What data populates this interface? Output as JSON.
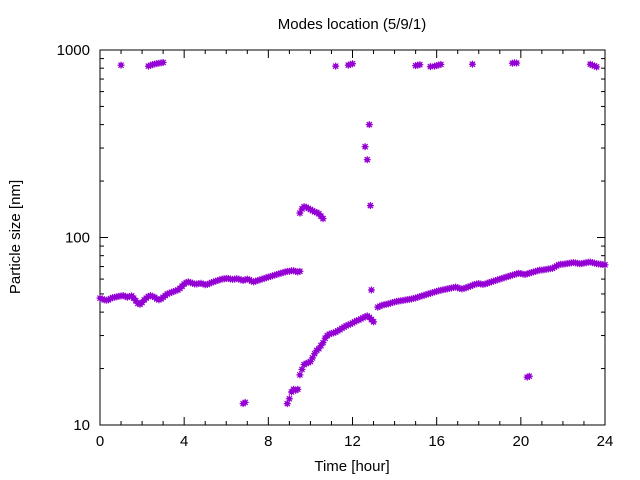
{
  "chart_data": {
    "type": "scatter",
    "title": "Modes location (5/9/1)",
    "xlabel": "Time [hour]",
    "ylabel": "Particle size [nm]",
    "xlim": [
      0,
      24
    ],
    "ylim": [
      10,
      1000
    ],
    "y_scale": "log",
    "x_ticks": [
      0,
      4,
      8,
      12,
      16,
      20,
      24
    ],
    "x_tick_labels": [
      "0",
      "4",
      "8",
      "12",
      "16",
      "20",
      "24"
    ],
    "y_ticks": [
      10,
      100,
      1000
    ],
    "y_tick_labels": [
      "10",
      "100",
      "1000"
    ],
    "grid": false,
    "legend": "none",
    "marker_color": "#9400d3",
    "series": [
      {
        "points": [
          [
            0.0,
            47.5
          ],
          [
            0.1,
            47.0
          ],
          [
            0.2,
            46.5
          ],
          [
            0.3,
            46.3
          ],
          [
            0.4,
            46.5
          ],
          [
            0.5,
            47.2
          ],
          [
            0.6,
            47.8
          ],
          [
            0.7,
            48.0
          ],
          [
            0.8,
            48.3
          ],
          [
            0.9,
            48.6
          ],
          [
            1.0,
            48.8
          ],
          [
            1.1,
            49.0
          ],
          [
            1.2,
            48.5
          ],
          [
            1.3,
            48.0
          ],
          [
            1.4,
            48.5
          ],
          [
            1.5,
            48.8
          ],
          [
            1.6,
            47.5
          ],
          [
            1.7,
            46.0
          ],
          [
            1.8,
            44.5
          ],
          [
            1.9,
            44.0
          ],
          [
            2.0,
            45.0
          ],
          [
            2.1,
            46.5
          ],
          [
            2.2,
            47.5
          ],
          [
            2.3,
            48.5
          ],
          [
            2.4,
            49.0
          ],
          [
            2.5,
            48.5
          ],
          [
            2.6,
            48.0
          ],
          [
            2.7,
            47.0
          ],
          [
            2.8,
            46.5
          ],
          [
            2.9,
            47.0
          ],
          [
            3.0,
            48.0
          ],
          [
            3.1,
            49.0
          ],
          [
            3.2,
            50.0
          ],
          [
            3.3,
            50.5
          ],
          [
            3.4,
            51.0
          ],
          [
            3.5,
            51.5
          ],
          [
            3.6,
            52.0
          ],
          [
            3.7,
            52.5
          ],
          [
            3.8,
            53.5
          ],
          [
            3.9,
            55.0
          ],
          [
            4.0,
            56.5
          ],
          [
            4.1,
            57.5
          ],
          [
            4.2,
            58.0
          ],
          [
            4.3,
            57.5
          ],
          [
            4.4,
            57.0
          ],
          [
            4.5,
            56.5
          ],
          [
            4.6,
            56.5
          ],
          [
            4.7,
            56.8
          ],
          [
            4.8,
            57.0
          ],
          [
            4.9,
            56.5
          ],
          [
            5.0,
            56.0
          ],
          [
            5.1,
            56.2
          ],
          [
            5.2,
            56.8
          ],
          [
            5.3,
            57.5
          ],
          [
            5.4,
            58.0
          ],
          [
            5.5,
            58.5
          ],
          [
            5.6,
            59.0
          ],
          [
            5.7,
            59.5
          ],
          [
            5.8,
            60.0
          ],
          [
            5.9,
            60.2
          ],
          [
            6.0,
            60.5
          ],
          [
            6.1,
            60.5
          ],
          [
            6.2,
            60.0
          ],
          [
            6.3,
            59.8
          ],
          [
            6.4,
            60.0
          ],
          [
            6.5,
            60.3
          ],
          [
            6.6,
            60.0
          ],
          [
            6.7,
            59.5
          ],
          [
            6.8,
            59.0
          ],
          [
            6.9,
            59.5
          ],
          [
            7.0,
            60.0
          ],
          [
            7.1,
            59.5
          ],
          [
            7.2,
            58.5
          ],
          [
            7.3,
            58.0
          ],
          [
            7.4,
            58.5
          ],
          [
            7.5,
            59.0
          ],
          [
            7.6,
            59.5
          ],
          [
            7.7,
            60.0
          ],
          [
            7.8,
            60.5
          ],
          [
            7.9,
            61.0
          ],
          [
            8.0,
            61.5
          ],
          [
            8.1,
            62.0
          ],
          [
            8.2,
            62.5
          ],
          [
            8.3,
            63.0
          ],
          [
            8.4,
            63.5
          ],
          [
            8.5,
            64.0
          ],
          [
            8.6,
            64.5
          ],
          [
            8.7,
            65.0
          ],
          [
            8.8,
            65.5
          ],
          [
            8.9,
            66.0
          ],
          [
            9.0,
            66.0
          ],
          [
            9.1,
            66.5
          ],
          [
            9.2,
            66.5
          ],
          [
            9.3,
            66.0
          ],
          [
            9.4,
            65.5
          ],
          [
            9.5,
            66.0
          ],
          [
            9.5,
            135
          ],
          [
            9.6,
            142
          ],
          [
            9.7,
            146
          ],
          [
            9.8,
            145
          ],
          [
            9.9,
            143
          ],
          [
            10.0,
            141
          ],
          [
            10.1,
            139
          ],
          [
            10.2,
            137
          ],
          [
            10.3,
            136
          ],
          [
            10.4,
            134
          ],
          [
            10.5,
            130
          ],
          [
            10.6,
            126
          ],
          [
            6.8,
            13.0
          ],
          [
            6.9,
            13.2
          ],
          [
            8.9,
            13.0
          ],
          [
            9.0,
            13.8
          ],
          [
            9.1,
            15.0
          ],
          [
            9.2,
            15.5
          ],
          [
            9.3,
            15.3
          ],
          [
            9.4,
            15.5
          ],
          [
            9.5,
            18.5
          ],
          [
            9.6,
            19.8
          ],
          [
            9.7,
            21.0
          ],
          [
            9.8,
            21.3
          ],
          [
            9.9,
            21.5
          ],
          [
            10.0,
            21.8
          ],
          [
            10.1,
            22.8
          ],
          [
            10.2,
            24.0
          ],
          [
            10.3,
            25.0
          ],
          [
            10.4,
            25.5
          ],
          [
            10.5,
            26.5
          ],
          [
            10.6,
            27.5
          ],
          [
            10.7,
            29.0
          ],
          [
            10.8,
            30.0
          ],
          [
            10.9,
            30.5
          ],
          [
            11.0,
            30.8
          ],
          [
            11.1,
            31.0
          ],
          [
            11.2,
            31.3
          ],
          [
            11.3,
            31.8
          ],
          [
            11.4,
            32.2
          ],
          [
            11.5,
            32.8
          ],
          [
            11.6,
            33.3
          ],
          [
            11.7,
            33.8
          ],
          [
            11.8,
            34.2
          ],
          [
            11.9,
            34.5
          ],
          [
            12.0,
            35.0
          ],
          [
            12.1,
            35.5
          ],
          [
            12.2,
            36.0
          ],
          [
            12.3,
            36.3
          ],
          [
            12.4,
            36.8
          ],
          [
            12.5,
            37.3
          ],
          [
            12.6,
            37.8
          ],
          [
            12.7,
            38.2
          ],
          [
            12.8,
            37.5
          ],
          [
            12.9,
            36.5
          ],
          [
            13.0,
            35.5
          ],
          [
            12.6,
            305
          ],
          [
            12.7,
            260
          ],
          [
            12.8,
            400
          ],
          [
            12.85,
            148
          ],
          [
            12.9,
            52.5
          ],
          [
            13.2,
            42.5
          ],
          [
            13.3,
            43.0
          ],
          [
            13.4,
            43.5
          ],
          [
            13.5,
            43.8
          ],
          [
            13.6,
            44.0
          ],
          [
            13.7,
            44.3
          ],
          [
            13.8,
            44.6
          ],
          [
            13.9,
            45.0
          ],
          [
            14.0,
            45.3
          ],
          [
            14.1,
            45.6
          ],
          [
            14.2,
            45.8
          ],
          [
            14.3,
            46.0
          ],
          [
            14.4,
            46.2
          ],
          [
            14.5,
            46.4
          ],
          [
            14.6,
            46.6
          ],
          [
            14.7,
            46.8
          ],
          [
            14.8,
            47.0
          ],
          [
            14.9,
            47.3
          ],
          [
            15.0,
            47.6
          ],
          [
            15.1,
            48.0
          ],
          [
            15.2,
            48.4
          ],
          [
            15.3,
            48.8
          ],
          [
            15.4,
            49.2
          ],
          [
            15.5,
            49.6
          ],
          [
            15.6,
            50.0
          ],
          [
            15.7,
            50.4
          ],
          [
            15.8,
            50.8
          ],
          [
            15.9,
            51.2
          ],
          [
            16.0,
            51.6
          ],
          [
            16.1,
            52.0
          ],
          [
            16.2,
            52.3
          ],
          [
            16.3,
            52.6
          ],
          [
            16.4,
            52.9
          ],
          [
            16.5,
            53.2
          ],
          [
            16.6,
            53.5
          ],
          [
            16.7,
            53.8
          ],
          [
            16.8,
            54.1
          ],
          [
            16.9,
            54.4
          ],
          [
            17.0,
            54.0
          ],
          [
            17.1,
            53.5
          ],
          [
            17.2,
            53.2
          ],
          [
            17.3,
            53.5
          ],
          [
            17.4,
            54.0
          ],
          [
            17.5,
            54.5
          ],
          [
            17.6,
            55.0
          ],
          [
            17.7,
            55.6
          ],
          [
            17.8,
            56.2
          ],
          [
            17.9,
            56.5
          ],
          [
            18.0,
            56.8
          ],
          [
            18.1,
            56.5
          ],
          [
            18.2,
            56.2
          ],
          [
            18.3,
            56.5
          ],
          [
            18.4,
            57.0
          ],
          [
            18.5,
            57.5
          ],
          [
            18.6,
            58.0
          ],
          [
            18.7,
            58.5
          ],
          [
            18.8,
            59.0
          ],
          [
            18.9,
            59.5
          ],
          [
            19.0,
            60.0
          ],
          [
            19.1,
            60.5
          ],
          [
            19.2,
            61.0
          ],
          [
            19.3,
            61.5
          ],
          [
            19.4,
            62.0
          ],
          [
            19.5,
            62.5
          ],
          [
            19.6,
            63.0
          ],
          [
            19.7,
            63.5
          ],
          [
            19.8,
            64.0
          ],
          [
            19.9,
            64.5
          ],
          [
            20.0,
            64.2
          ],
          [
            20.1,
            63.8
          ],
          [
            20.2,
            63.5
          ],
          [
            20.3,
            64.0
          ],
          [
            20.4,
            64.5
          ],
          [
            20.5,
            65.0
          ],
          [
            20.6,
            65.5
          ],
          [
            20.7,
            66.0
          ],
          [
            20.8,
            66.5
          ],
          [
            20.9,
            67.0
          ],
          [
            21.0,
            67.0
          ],
          [
            21.1,
            67.3
          ],
          [
            21.2,
            67.6
          ],
          [
            21.3,
            67.9
          ],
          [
            21.4,
            68.2
          ],
          [
            21.5,
            68.5
          ],
          [
            21.6,
            69.5
          ],
          [
            21.7,
            70.5
          ],
          [
            21.8,
            71.5
          ],
          [
            21.9,
            72.0
          ],
          [
            22.0,
            72.0
          ],
          [
            22.1,
            72.3
          ],
          [
            22.2,
            72.6
          ],
          [
            22.3,
            72.9
          ],
          [
            22.4,
            73.2
          ],
          [
            22.5,
            73.5
          ],
          [
            22.6,
            73.2
          ],
          [
            22.7,
            72.8
          ],
          [
            22.8,
            72.4
          ],
          [
            22.9,
            72.6
          ],
          [
            23.0,
            73.0
          ],
          [
            23.1,
            73.4
          ],
          [
            23.2,
            73.8
          ],
          [
            23.3,
            74.0
          ],
          [
            23.4,
            73.5
          ],
          [
            23.5,
            73.0
          ],
          [
            23.6,
            72.5
          ],
          [
            23.7,
            72.2
          ],
          [
            23.8,
            72.0
          ],
          [
            23.9,
            71.8
          ],
          [
            24.0,
            71.5
          ],
          [
            20.3,
            18.0
          ],
          [
            20.4,
            18.2
          ],
          [
            1.0,
            830
          ],
          [
            2.3,
            820
          ],
          [
            2.4,
            828
          ],
          [
            2.5,
            836
          ],
          [
            2.6,
            842
          ],
          [
            2.7,
            846
          ],
          [
            2.8,
            850
          ],
          [
            2.9,
            854
          ],
          [
            3.0,
            858
          ],
          [
            11.2,
            820
          ],
          [
            11.8,
            830
          ],
          [
            11.9,
            838
          ],
          [
            12.0,
            845
          ],
          [
            15.0,
            825
          ],
          [
            15.1,
            830
          ],
          [
            15.2,
            835
          ],
          [
            15.7,
            815
          ],
          [
            15.9,
            820
          ],
          [
            16.0,
            826
          ],
          [
            16.1,
            832
          ],
          [
            16.2,
            838
          ],
          [
            17.7,
            840
          ],
          [
            19.6,
            850
          ],
          [
            19.7,
            855
          ],
          [
            19.8,
            852
          ],
          [
            23.3,
            840
          ],
          [
            23.4,
            830
          ],
          [
            23.5,
            822
          ],
          [
            23.6,
            812
          ]
        ]
      }
    ]
  }
}
